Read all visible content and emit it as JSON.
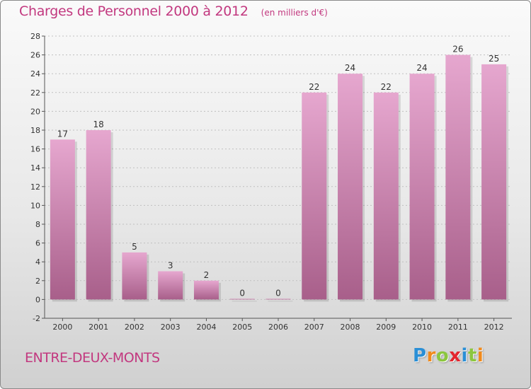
{
  "header": {
    "title": "Charges de Personnel 2000 à 2012",
    "subtitle": "(en milliers d'€)"
  },
  "footer": {
    "commune": "ENTRE-DEUX-MONTS",
    "logo_letters": [
      "P",
      "r",
      "o",
      "x",
      "i",
      "t",
      "i"
    ],
    "logo_colors": [
      "#2a8fd6",
      "#f08a1c",
      "#8cc63f",
      "#e3262e",
      "#2a8fd6",
      "#8cc63f",
      "#f08a1c"
    ]
  },
  "colors": {
    "bar_top": "#e6a7cf",
    "bar_bottom": "#a85f8a",
    "title": "#c2387f",
    "axis": "#555555",
    "grid": "#c0c0c0"
  },
  "chart_data": {
    "type": "bar",
    "categories": [
      "2000",
      "2001",
      "2002",
      "2003",
      "2004",
      "2005",
      "2006",
      "2007",
      "2008",
      "2009",
      "2010",
      "2011",
      "2012"
    ],
    "values": [
      17,
      18,
      5,
      3,
      2,
      0,
      0,
      22,
      24,
      22,
      24,
      26,
      25
    ],
    "ylim": [
      -2,
      28
    ],
    "yticks": [
      -2,
      0,
      2,
      4,
      6,
      8,
      10,
      12,
      14,
      16,
      18,
      20,
      22,
      24,
      26,
      28
    ],
    "grid": true,
    "legend": "none"
  }
}
